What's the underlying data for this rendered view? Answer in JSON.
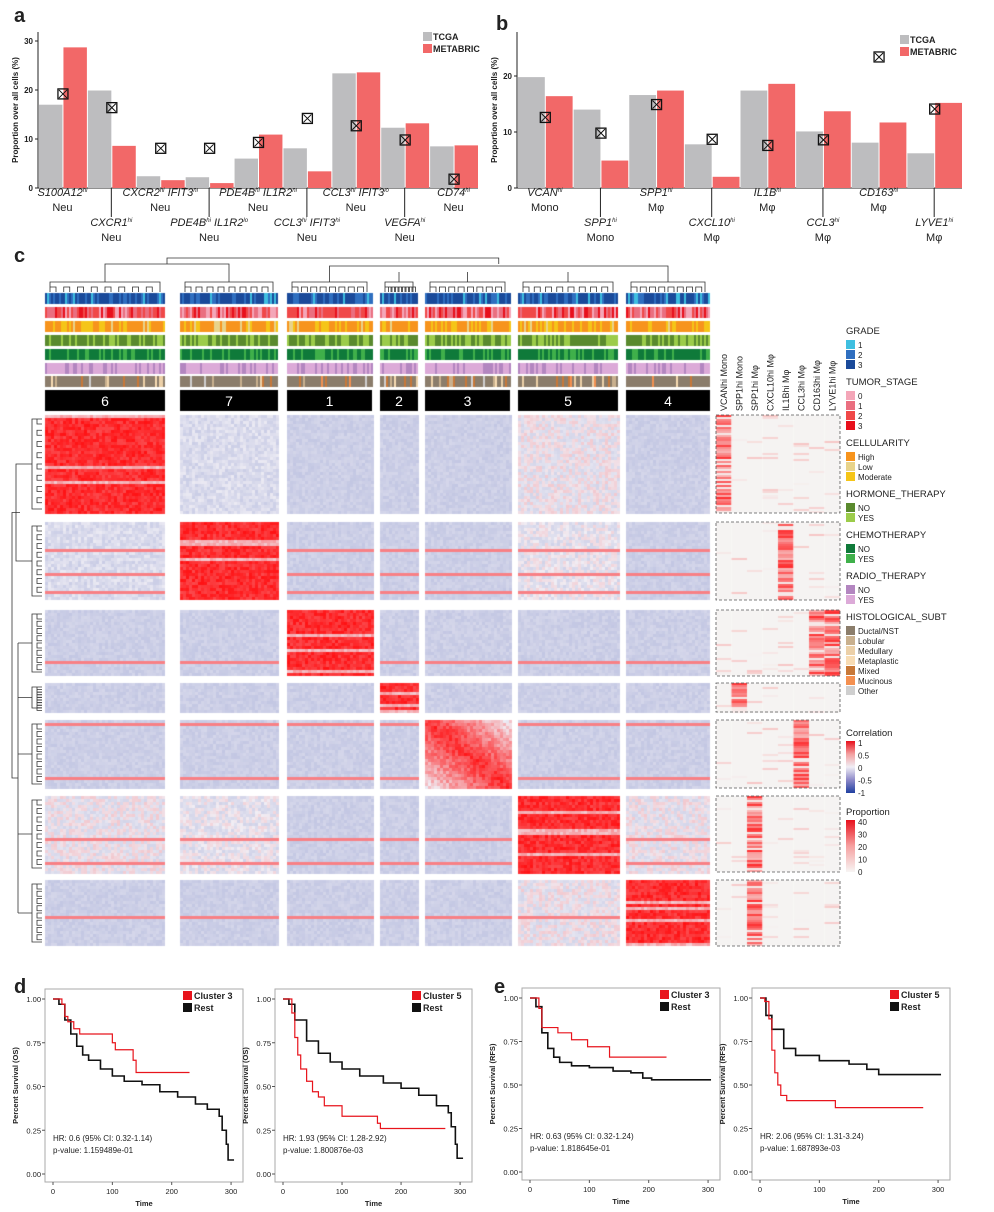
{
  "panel_labels": {
    "a": "a",
    "b": "b",
    "c": "c",
    "d": "d",
    "e": "e"
  },
  "colors": {
    "tcga": "#bdbdbf",
    "metabric": "#f26868",
    "km_cluster": "#e8141c",
    "km_rest": "#111111"
  },
  "chart_data": [
    {
      "id": "a",
      "type": "bar",
      "ylabel": "Proportion over all cells (%)",
      "ylim": [
        0,
        32
      ],
      "yticks": [
        0,
        10,
        20,
        30
      ],
      "legend": [
        "TCGA",
        "METABRIC"
      ],
      "legend_position": "top-right",
      "marker_series": "crossed-box marker",
      "categories": [
        {
          "gene": "S100A12",
          "sup": "hi",
          "cell": "Neu"
        },
        {
          "gene": "CXCR1",
          "sup": "hi",
          "cell": "Neu"
        },
        {
          "gene": "CXCR2",
          "sup": "hi",
          "gene2": "IFIT3",
          "sup2": "hi",
          "cell": "Neu"
        },
        {
          "gene": "PDE4B",
          "sup": "hi",
          "gene2": "IL1R2",
          "sup2": "lo",
          "cell": "Neu"
        },
        {
          "gene": "PDE4B",
          "sup": "hi",
          "gene2": "IL1R2",
          "sup2": "hi",
          "cell": "Neu"
        },
        {
          "gene": "CCL3",
          "sup": "hi",
          "gene2": "IFIT3",
          "sup2": "hi",
          "cell": "Neu"
        },
        {
          "gene": "CCL3",
          "sup": "hi",
          "gene2": "IFIT3",
          "sup2": "lo",
          "cell": "Neu"
        },
        {
          "gene": "VEGFA",
          "sup": "hi",
          "cell": "Neu"
        },
        {
          "gene": "CD74",
          "sup": "hi",
          "cell": "Neu"
        }
      ],
      "series": [
        {
          "name": "TCGA",
          "values": [
            17.0,
            19.9,
            2.4,
            2.2,
            6.0,
            8.1,
            23.4,
            12.3,
            8.5
          ]
        },
        {
          "name": "METABRIC",
          "values": [
            28.7,
            8.6,
            1.6,
            1.0,
            10.9,
            3.4,
            23.6,
            13.2,
            8.7
          ]
        },
        {
          "name": "marker",
          "values": [
            19.2,
            16.4,
            8.1,
            8.1,
            9.3,
            14.2,
            12.7,
            9.8,
            1.8
          ]
        }
      ]
    },
    {
      "id": "b",
      "type": "bar",
      "ylabel": "Proportion over all cells (%)",
      "ylim": [
        0,
        28
      ],
      "yticks": [
        0,
        10,
        20
      ],
      "legend": [
        "TCGA",
        "METABRIC"
      ],
      "legend_position": "top-right",
      "marker_series": "crossed-box marker",
      "categories": [
        {
          "gene": "VCAN",
          "sup": "hi",
          "cell": "Mono"
        },
        {
          "gene": "SPP1",
          "sup": "hi",
          "cell": "Mono"
        },
        {
          "gene": "SPP1",
          "sup": "hi",
          "cell": "Mφ"
        },
        {
          "gene": "CXCL10",
          "sup": "hi",
          "cell": "Mφ"
        },
        {
          "gene": "IL1B",
          "sup": "hi",
          "cell": "Mφ"
        },
        {
          "gene": "CCL3",
          "sup": "hi",
          "cell": "Mφ"
        },
        {
          "gene": "CD163",
          "sup": "hi",
          "cell": "Mφ"
        },
        {
          "gene": "LYVE1",
          "sup": "hi",
          "cell": "Mφ"
        }
      ],
      "series": [
        {
          "name": "TCGA",
          "values": [
            19.8,
            14.0,
            16.6,
            7.8,
            17.4,
            10.1,
            8.1,
            6.2
          ]
        },
        {
          "name": "METABRIC",
          "values": [
            16.4,
            4.9,
            17.4,
            2.0,
            18.6,
            13.7,
            11.7,
            15.2
          ]
        },
        {
          "name": "marker",
          "values": [
            12.6,
            9.8,
            14.9,
            8.7,
            7.6,
            8.6,
            23.4,
            14.1
          ]
        }
      ]
    },
    {
      "id": "c",
      "type": "heatmap",
      "cluster_order": [
        "6",
        "7",
        "1",
        "2",
        "3",
        "5",
        "4"
      ],
      "proportion_columns": [
        "VCANhi Mono",
        "SPP1hi Mono",
        "SPP1hi Mφ",
        "CXCL10hi Mφ",
        "IL1Bhi Mφ",
        "CCL3hi Mφ",
        "CD163hi Mφ",
        "LYVE1hi Mφ"
      ],
      "cluster_enriched_columns": {
        "6": [
          "VCANhi Mono"
        ],
        "7": [
          "IL1Bhi Mφ"
        ],
        "1": [
          "CD163hi Mφ",
          "LYVE1hi Mφ"
        ],
        "2": [
          "SPP1hi Mono"
        ],
        "3": [
          "CCL3hi Mφ"
        ],
        "5": [
          "SPP1hi Mφ"
        ],
        "4": [
          "SPP1hi Mφ"
        ]
      },
      "legends": [
        {
          "title": "GRADE",
          "items": [
            {
              "label": "1",
              "color": "#3fbfe0"
            },
            {
              "label": "2",
              "color": "#2f6fc0"
            },
            {
              "label": "3",
              "color": "#1a4a9a"
            }
          ]
        },
        {
          "title": "TUMOR_STAGE",
          "items": [
            {
              "label": "0",
              "color": "#f4a6b8"
            },
            {
              "label": "1",
              "color": "#ea6f80"
            },
            {
              "label": "2",
              "color": "#f04848"
            },
            {
              "label": "3",
              "color": "#e8101c"
            }
          ]
        },
        {
          "title": "CELLULARITY",
          "items": [
            {
              "label": "High",
              "color": "#f7941d"
            },
            {
              "label": "Low",
              "color": "#e8d38a"
            },
            {
              "label": "Moderate",
              "color": "#f5c518"
            }
          ]
        },
        {
          "title": "HORMONE_THERAPY",
          "items": [
            {
              "label": "NO",
              "color": "#5a8a2e"
            },
            {
              "label": "YES",
              "color": "#9ccc4a"
            }
          ]
        },
        {
          "title": "CHEMOTHERAPY",
          "items": [
            {
              "label": "NO",
              "color": "#0f7a3a"
            },
            {
              "label": "YES",
              "color": "#3fb04a"
            }
          ]
        },
        {
          "title": "RADIO_THERAPY",
          "items": [
            {
              "label": "NO",
              "color": "#b386c0"
            },
            {
              "label": "YES",
              "color": "#dcaad8"
            }
          ]
        },
        {
          "title": "HISTOLOGICAL_SUBT",
          "items": [
            {
              "label": "Ductal/NST",
              "color": "#8b7d6b"
            },
            {
              "label": "Lobular",
              "color": "#c9b08e"
            },
            {
              "label": "Medullary",
              "color": "#ecd0a8"
            },
            {
              "label": "Metaplastic",
              "color": "#f8dcb4"
            },
            {
              "label": "Mixed",
              "color": "#c87838"
            },
            {
              "label": "Mucinous",
              "color": "#f49050"
            },
            {
              "label": "Other",
              "color": "#cfcfcf"
            }
          ]
        }
      ],
      "correlation_scale": {
        "title": "Correlation",
        "ticks": [
          "1",
          "0.5",
          "0",
          "-0.5",
          "-1"
        ]
      },
      "proportion_scale": {
        "title": "Proportion",
        "ticks": [
          "40",
          "30",
          "20",
          "10",
          "0"
        ]
      }
    },
    {
      "id": "d1",
      "type": "line",
      "kind": "kaplan-meier",
      "xlabel": "Time",
      "ylabel": "Percent Survival (OS)",
      "xlim": [
        0,
        310
      ],
      "ylim": [
        0,
        1
      ],
      "xticks": [
        "0",
        "100",
        "200",
        "300"
      ],
      "yticks": [
        "0.00",
        "0.25",
        "0.50",
        "0.75",
        "1.00"
      ],
      "legend": [
        "Cluster 3",
        "Rest"
      ],
      "legend_position": "top-right",
      "hr": "HR: 0.6 (95% CI: 0.32-1.14)",
      "pvalue": "p-value: 1.159489e-01",
      "series": [
        {
          "name": "Cluster 3",
          "points": [
            [
              0,
              1
            ],
            [
              10,
              1
            ],
            [
              15,
              0.97
            ],
            [
              20,
              0.9
            ],
            [
              25,
              0.87
            ],
            [
              35,
              0.83
            ],
            [
              45,
              0.8
            ],
            [
              95,
              0.8
            ],
            [
              100,
              0.75
            ],
            [
              105,
              0.71
            ],
            [
              130,
              0.71
            ],
            [
              135,
              0.65
            ],
            [
              140,
              0.58
            ],
            [
              230,
              0.58
            ]
          ]
        },
        {
          "name": "Rest",
          "points": [
            [
              0,
              1
            ],
            [
              10,
              0.97
            ],
            [
              20,
              0.88
            ],
            [
              30,
              0.8
            ],
            [
              40,
              0.73
            ],
            [
              50,
              0.68
            ],
            [
              60,
              0.65
            ],
            [
              80,
              0.6
            ],
            [
              100,
              0.56
            ],
            [
              120,
              0.53
            ],
            [
              150,
              0.51
            ],
            [
              180,
              0.47
            ],
            [
              210,
              0.44
            ],
            [
              240,
              0.4
            ],
            [
              260,
              0.37
            ],
            [
              280,
              0.33
            ],
            [
              285,
              0.25
            ],
            [
              292,
              0.17
            ],
            [
              295,
              0.08
            ],
            [
              305,
              0.08
            ]
          ]
        }
      ]
    },
    {
      "id": "d2",
      "type": "line",
      "kind": "kaplan-meier",
      "xlabel": "Time",
      "ylabel": "Percent Survival (OS)",
      "xlim": [
        0,
        310
      ],
      "ylim": [
        0,
        1
      ],
      "xticks": [
        "0",
        "100",
        "200",
        "300"
      ],
      "yticks": [
        "0.00",
        "0.25",
        "0.50",
        "0.75",
        "1.00"
      ],
      "legend": [
        "Cluster 5",
        "Rest"
      ],
      "legend_position": "top-right",
      "hr": "HR: 1.93 (95% CI: 1.28-2.92)",
      "pvalue": "p-value: 1.800876e-03",
      "series": [
        {
          "name": "Cluster 5",
          "points": [
            [
              0,
              1
            ],
            [
              10,
              1
            ],
            [
              15,
              0.92
            ],
            [
              20,
              0.78
            ],
            [
              25,
              0.68
            ],
            [
              30,
              0.6
            ],
            [
              40,
              0.53
            ],
            [
              50,
              0.47
            ],
            [
              60,
              0.44
            ],
            [
              70,
              0.39
            ],
            [
              98,
              0.39
            ],
            [
              100,
              0.33
            ],
            [
              155,
              0.33
            ],
            [
              160,
              0.29
            ],
            [
              165,
              0.26
            ],
            [
              275,
              0.26
            ]
          ]
        },
        {
          "name": "Rest",
          "points": [
            [
              0,
              1
            ],
            [
              10,
              0.97
            ],
            [
              20,
              0.88
            ],
            [
              40,
              0.76
            ],
            [
              60,
              0.69
            ],
            [
              80,
              0.64
            ],
            [
              100,
              0.6
            ],
            [
              130,
              0.56
            ],
            [
              170,
              0.52
            ],
            [
              200,
              0.49
            ],
            [
              230,
              0.45
            ],
            [
              260,
              0.39
            ],
            [
              280,
              0.35
            ],
            [
              285,
              0.27
            ],
            [
              292,
              0.17
            ],
            [
              295,
              0.09
            ],
            [
              305,
              0.09
            ]
          ]
        }
      ]
    },
    {
      "id": "e1",
      "type": "line",
      "kind": "kaplan-meier",
      "xlabel": "Time",
      "ylabel": "Percent Survival (RFS)",
      "xlim": [
        0,
        310
      ],
      "ylim": [
        0,
        1
      ],
      "xticks": [
        "0",
        "100",
        "200",
        "300"
      ],
      "yticks": [
        "0.00",
        "0.25",
        "0.50",
        "0.75",
        "1.00"
      ],
      "legend": [
        "Cluster 3",
        "Rest"
      ],
      "legend_position": "top-right",
      "hr": "HR: 0.63 (95% CI: 0.32-1.24)",
      "pvalue": "p-value: 1.818645e-01",
      "series": [
        {
          "name": "Cluster 3",
          "points": [
            [
              0,
              1
            ],
            [
              12,
              1
            ],
            [
              15,
              0.94
            ],
            [
              20,
              0.83
            ],
            [
              45,
              0.83
            ],
            [
              47,
              0.8
            ],
            [
              68,
              0.8
            ],
            [
              70,
              0.76
            ],
            [
              95,
              0.76
            ],
            [
              97,
              0.72
            ],
            [
              132,
              0.72
            ],
            [
              134,
              0.66
            ],
            [
              230,
              0.66
            ]
          ]
        },
        {
          "name": "Rest",
          "points": [
            [
              0,
              1
            ],
            [
              10,
              0.95
            ],
            [
              20,
              0.8
            ],
            [
              30,
              0.71
            ],
            [
              40,
              0.66
            ],
            [
              50,
              0.63
            ],
            [
              70,
              0.61
            ],
            [
              100,
              0.6
            ],
            [
              140,
              0.58
            ],
            [
              170,
              0.57
            ],
            [
              190,
              0.54
            ],
            [
              205,
              0.53
            ],
            [
              305,
              0.53
            ]
          ]
        }
      ]
    },
    {
      "id": "e2",
      "type": "line",
      "kind": "kaplan-meier",
      "xlabel": "Time",
      "ylabel": "Percent Survival (RFS)",
      "xlim": [
        0,
        310
      ],
      "ylim": [
        0,
        1
      ],
      "xticks": [
        "0",
        "100",
        "200",
        "300"
      ],
      "yticks": [
        "0.00",
        "0.25",
        "0.50",
        "0.75",
        "1.00"
      ],
      "legend": [
        "Cluster 5",
        "Rest"
      ],
      "legend_position": "top-right",
      "hr": "HR: 2.06 (95% CI: 1.31-3.24)",
      "pvalue": "p-value: 1.687893e-03",
      "series": [
        {
          "name": "Cluster 5",
          "points": [
            [
              0,
              1
            ],
            [
              8,
              0.98
            ],
            [
              15,
              0.88
            ],
            [
              20,
              0.7
            ],
            [
              25,
              0.57
            ],
            [
              30,
              0.5
            ],
            [
              35,
              0.44
            ],
            [
              45,
              0.41
            ],
            [
              125,
              0.41
            ],
            [
              127,
              0.37
            ],
            [
              275,
              0.37
            ]
          ]
        },
        {
          "name": "Rest",
          "points": [
            [
              0,
              1
            ],
            [
              10,
              0.9
            ],
            [
              20,
              0.82
            ],
            [
              40,
              0.71
            ],
            [
              60,
              0.67
            ],
            [
              100,
              0.64
            ],
            [
              150,
              0.62
            ],
            [
              180,
              0.59
            ],
            [
              200,
              0.56
            ],
            [
              305,
              0.56
            ]
          ]
        }
      ]
    }
  ]
}
